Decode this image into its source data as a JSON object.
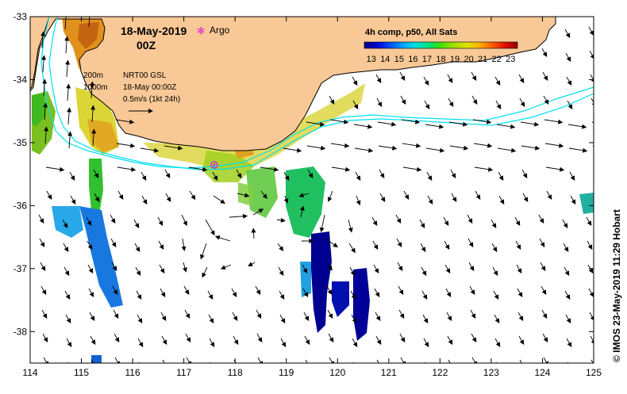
{
  "title": {
    "date": "18-May-2019",
    "time": "00Z"
  },
  "argo_legend": {
    "symbol": "✻",
    "label": "Argo",
    "color": "#e020e0"
  },
  "info_block": {
    "line1_left": "200m",
    "line1_right": "NRT00 GSL",
    "line2_left": "1000m",
    "line2_right": "18-May 00:00Z",
    "line3": "0.5m/s (1kt 24h)"
  },
  "colorbar": {
    "title": "4h comp, p50, All Sats",
    "ticks": [
      "13",
      "14",
      "15",
      "16",
      "17",
      "18",
      "19",
      "20",
      "21",
      "22",
      "23"
    ],
    "min": 13,
    "max": 23,
    "colors": [
      "#000080",
      "#0000d0",
      "#0050ff",
      "#00a0ff",
      "#00e0e0",
      "#00e080",
      "#40e000",
      "#a0e000",
      "#e0e000",
      "#ffb000",
      "#ff6000",
      "#e01000",
      "#900000"
    ]
  },
  "axes": {
    "x_ticks": [
      "114",
      "115",
      "116",
      "117",
      "118",
      "119",
      "120",
      "121",
      "122",
      "123",
      "124",
      "125"
    ],
    "y_ticks": [
      "-33",
      "-34",
      "-35",
      "-36",
      "-37",
      "-38"
    ],
    "lon_range": [
      114,
      125
    ],
    "lat_range": [
      -38.5,
      -33
    ]
  },
  "credit": "© IMOS 23-May-2019 11:29 Hobart",
  "colors": {
    "land": "#f8c896",
    "coast": "#000000",
    "isobath": "#00e0ee"
  }
}
